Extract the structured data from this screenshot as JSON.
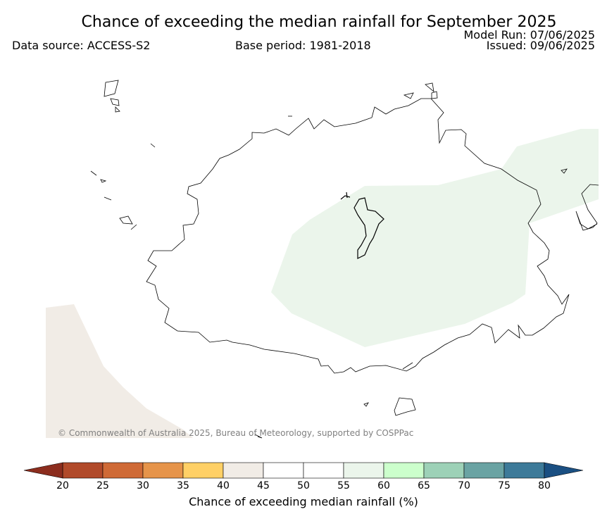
{
  "header": {
    "title": "Chance of exceeding the median rainfall for September 2025",
    "model_run": "Model Run: 07/06/2025",
    "issued": "Issued: 09/06/2025",
    "data_source": "Data source: ACCESS-S2",
    "base_period": "Base period: 1981-2018"
  },
  "map": {
    "copyright": "© Commonwealth of Australia 2025, Bureau of Meteorology, supported by COSPPac",
    "shaded_regions": [
      {
        "name": "east-region",
        "category": "55-60",
        "color": "#ebf5eb"
      },
      {
        "name": "southwest-region",
        "category": "40-45",
        "color": "#f1ece6"
      }
    ]
  },
  "colorbar": {
    "label": "Chance of exceeding median rainfall (%)",
    "ticks": [
      "20",
      "25",
      "30",
      "35",
      "40",
      "45",
      "50",
      "55",
      "60",
      "65",
      "70",
      "75",
      "80"
    ],
    "under_color": "#8c2d1e",
    "over_color": "#1a4f82",
    "colors": [
      "#b14a2a",
      "#cf6a36",
      "#e6944a",
      "#ffd066",
      "#f1ece6",
      "#ffffff",
      "#ffffff",
      "#ebf5eb",
      "#ccffcc",
      "#9dd1b7",
      "#6aa3a3",
      "#3d7a99"
    ]
  }
}
